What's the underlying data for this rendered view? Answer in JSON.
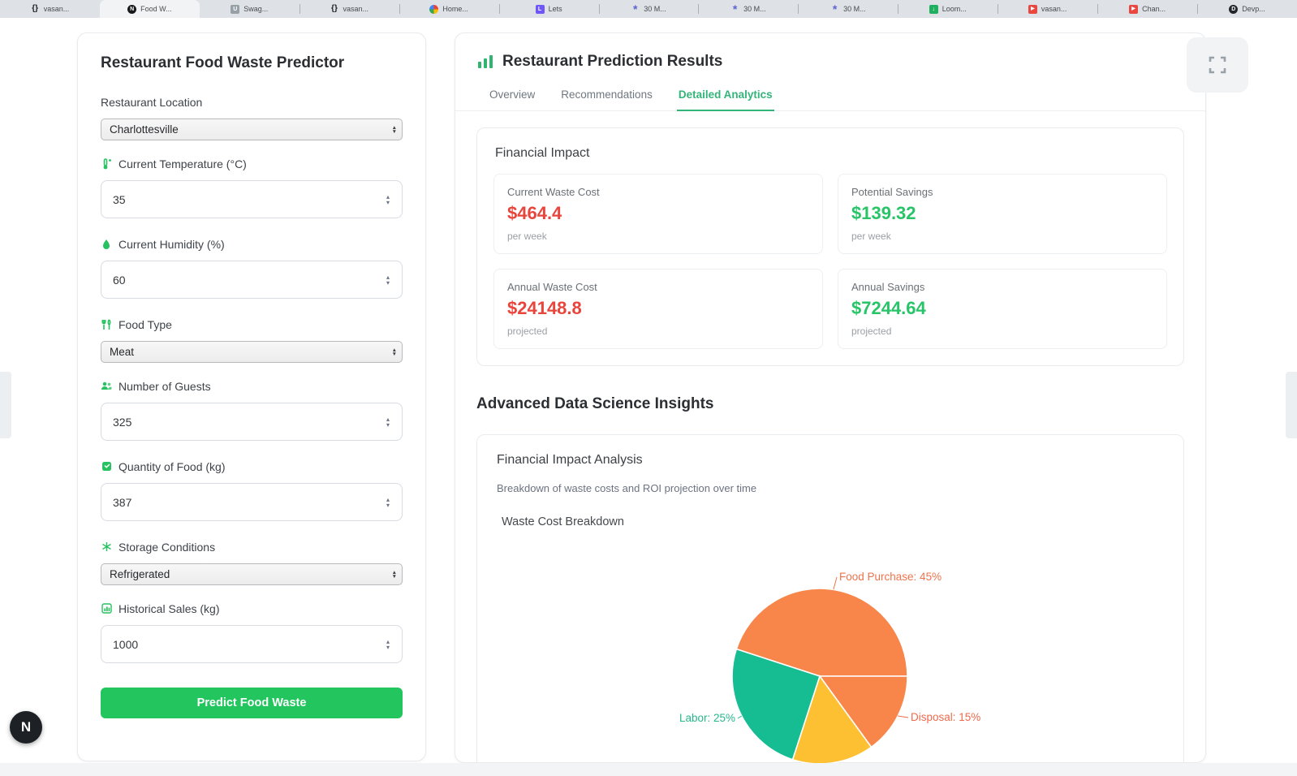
{
  "browser_tabs": [
    {
      "label": "vasan...",
      "icon": "code-icon",
      "style": "code",
      "active": false
    },
    {
      "label": "Food W...",
      "icon": "nextjs-app-icon",
      "style": "nextjs",
      "glyph": "N",
      "active": true
    },
    {
      "label": "Swag...",
      "icon": "swagger-icon",
      "style": "gray",
      "glyph": "U",
      "active": false
    },
    {
      "label": "vasan...",
      "icon": "code-icon",
      "style": "code",
      "active": false
    },
    {
      "label": "Home...",
      "icon": "google-icon",
      "style": "google",
      "active": false
    },
    {
      "label": "Lets",
      "icon": "purple-app-icon",
      "style": "purple",
      "glyph": "L",
      "active": false
    },
    {
      "label": "30 M...",
      "icon": "flower-icon",
      "style": "flower",
      "glyph": "*",
      "active": false
    },
    {
      "label": "30 M...",
      "icon": "flower-icon",
      "style": "flower",
      "glyph": "*",
      "active": false
    },
    {
      "label": "30 M...",
      "icon": "flower-icon",
      "style": "flower",
      "glyph": "*",
      "active": false
    },
    {
      "label": "Loom...",
      "icon": "loom-icon",
      "style": "loom",
      "glyph": "↓",
      "active": false
    },
    {
      "label": "vasan...",
      "icon": "youtube-icon",
      "style": "youtube",
      "glyph": "▶",
      "active": false
    },
    {
      "label": "Chan...",
      "icon": "youtube-icon",
      "style": "youtube",
      "glyph": "▶",
      "active": false
    },
    {
      "label": "Devp...",
      "icon": "shield-icon",
      "style": "shield",
      "glyph": "D",
      "active": false
    }
  ],
  "sidebar_form": {
    "title": "Restaurant Food Waste Predictor",
    "fields": [
      {
        "label": "Restaurant Location",
        "icon": "",
        "type": "select",
        "value": "Charlottesville"
      },
      {
        "label": "Current Temperature (°C)",
        "icon": "thermometer-icon",
        "type": "number",
        "value": "35"
      },
      {
        "label": "Current Humidity (%)",
        "icon": "droplet-icon",
        "type": "number",
        "value": "60"
      },
      {
        "label": "Food Type",
        "icon": "utensils-icon",
        "type": "select",
        "value": "Meat"
      },
      {
        "label": "Number of Guests",
        "icon": "users-icon",
        "type": "number",
        "value": "325"
      },
      {
        "label": "Quantity of Food (kg)",
        "icon": "package-icon",
        "type": "number",
        "value": "387"
      },
      {
        "label": "Storage Conditions",
        "icon": "snowflake-icon",
        "type": "select",
        "value": "Refrigerated"
      },
      {
        "label": "Historical Sales (kg)",
        "icon": "chart-icon",
        "type": "number",
        "value": "1000"
      }
    ],
    "submit_label": "Predict Food Waste",
    "accent_color": "#22c55e"
  },
  "results": {
    "title": "Restaurant Prediction Results",
    "tabs": [
      {
        "label": "Overview",
        "active": false
      },
      {
        "label": "Recommendations",
        "active": false
      },
      {
        "label": "Detailed Analytics",
        "active": true
      }
    ],
    "financial_impact": {
      "heading": "Financial Impact",
      "metrics": [
        {
          "label": "Current Waste Cost",
          "value": "$464.4",
          "period": "per week",
          "color": "#e8453c"
        },
        {
          "label": "Potential Savings",
          "value": "$139.32",
          "period": "per week",
          "color": "#27c468"
        },
        {
          "label": "Annual Waste Cost",
          "value": "$24148.8",
          "period": "projected",
          "color": "#e8453c"
        },
        {
          "label": "Annual Savings",
          "value": "$7244.64",
          "period": "projected",
          "color": "#27c468"
        }
      ]
    },
    "insights_heading": "Advanced Data Science Insights",
    "analysis_card": {
      "title": "Financial Impact Analysis",
      "subtitle": "Breakdown of waste costs and ROI projection over time",
      "chart_title": "Waste Cost Breakdown"
    }
  },
  "chart_data": {
    "type": "pie",
    "title": "Waste Cost Breakdown",
    "slices": [
      {
        "label": "Food Purchase",
        "percent": 45,
        "color": "#f8864a",
        "label_color": "#ee744c",
        "label_visible": true
      },
      {
        "label": "Disposal",
        "percent": 15,
        "color": "#f8864a",
        "label_color": "#ee6a4d",
        "label_visible": true
      },
      {
        "label": "",
        "percent": 15,
        "color": "#fdc033",
        "label_color": "",
        "label_visible": false
      },
      {
        "label": "Labor",
        "percent": 25,
        "color": "#16bd92",
        "label_color": "#27b88a",
        "label_visible": true
      }
    ],
    "start_angle_deg": 162,
    "direction": "clockwise",
    "legend_position": "none"
  },
  "floating": {
    "dev_badge": "N",
    "fullscreen_icon": "fullscreen-icon"
  }
}
